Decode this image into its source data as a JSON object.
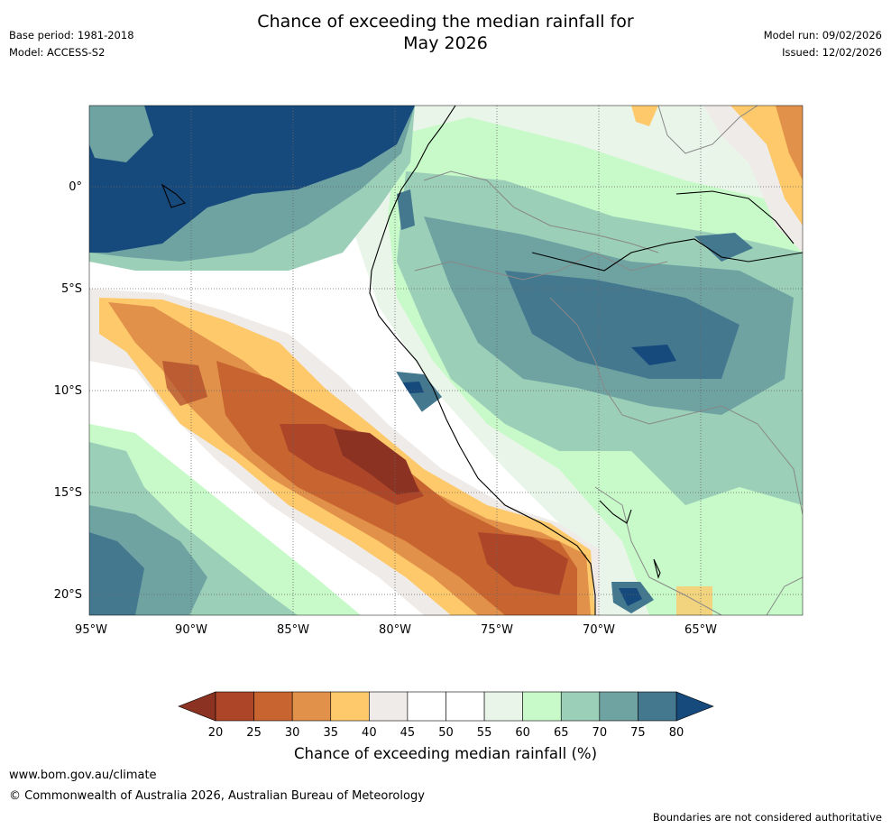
{
  "title_line1": "Chance of exceeding the median rainfall for",
  "title_line2": "May 2026",
  "meta": {
    "base_period": "Base period: 1981-2018",
    "model": "Model: ACCESS-S2",
    "model_run": "Model run: 09/02/2026",
    "issued": "Issued: 12/02/2026"
  },
  "map": {
    "lon_labels": [
      "95°W",
      "90°W",
      "85°W",
      "80°W",
      "75°W",
      "70°W",
      "65°W"
    ],
    "lat_labels": [
      "0°",
      "5°S",
      "10°S",
      "15°S",
      "20°S"
    ]
  },
  "colorbar": {
    "ticks": [
      "20",
      "25",
      "30",
      "35",
      "40",
      "45",
      "50",
      "55",
      "60",
      "65",
      "70",
      "75",
      "80"
    ],
    "colors": [
      "#ad4629",
      "#c8642f",
      "#e1914a",
      "#fdc96b",
      "#efebe8",
      "#ffffff",
      "#ffffff",
      "#e9f5e8",
      "#c8fac9",
      "#9bcfb8",
      "#6fa3a2",
      "#44788f"
    ],
    "low_color": "#8c3222",
    "high_color": "#174a7c",
    "label": "Chance of exceeding median rainfall (%)"
  },
  "footer": {
    "site": "www.bom.gov.au/climate",
    "copyright": "© Commonwealth of Australia 2026, Australian Bureau of Meteorology",
    "disclaimer": "Boundaries are not considered authoritative"
  }
}
